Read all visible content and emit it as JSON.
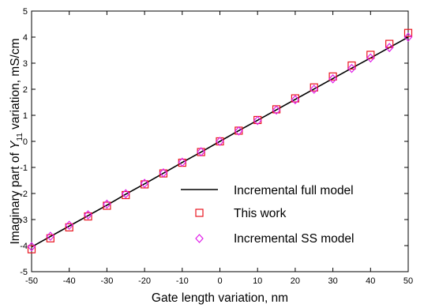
{
  "chart_data": {
    "type": "line",
    "title": "",
    "xlabel": "Gate length variation, nm",
    "ylabel": {
      "prefix": "Imaginary part of ",
      "symbol": "Y",
      "subscript": "11",
      "suffix": " variation, mS/cm"
    },
    "xlim": [
      -50,
      50
    ],
    "ylim": [
      -5,
      5
    ],
    "xticks": [
      -50,
      -40,
      -30,
      -20,
      -10,
      0,
      10,
      20,
      30,
      40,
      50
    ],
    "yticks": [
      -5,
      -4,
      -3,
      -2,
      -1,
      0,
      1,
      2,
      3,
      4,
      5
    ],
    "grid": false,
    "legend_position": "bottom-right",
    "x": [
      -50,
      -45,
      -40,
      -35,
      -30,
      -25,
      -20,
      -15,
      -10,
      -5,
      0,
      5,
      10,
      15,
      20,
      25,
      30,
      35,
      40,
      45,
      50
    ],
    "series": [
      {
        "name": "Incremental full model",
        "style": "line",
        "color": "#000000",
        "values": [
          -4.05,
          -3.65,
          -3.25,
          -2.85,
          -2.45,
          -2.03,
          -1.63,
          -1.22,
          -0.81,
          -0.41,
          0.0,
          0.41,
          0.81,
          1.21,
          1.61,
          2.01,
          2.41,
          2.81,
          3.2,
          3.6,
          4.0
        ]
      },
      {
        "name": "This work",
        "style": "square",
        "color": "#e8141e",
        "values": [
          -4.14,
          -3.72,
          -3.3,
          -2.88,
          -2.47,
          -2.06,
          -1.65,
          -1.23,
          -0.82,
          -0.41,
          0.0,
          0.41,
          0.82,
          1.23,
          1.65,
          2.07,
          2.49,
          2.91,
          3.32,
          3.74,
          4.16
        ]
      },
      {
        "name": "Incremental SS model",
        "style": "diamond",
        "color": "#e020e8",
        "values": [
          -4.04,
          -3.64,
          -3.22,
          -2.82,
          -2.41,
          -2.01,
          -1.61,
          -1.21,
          -0.8,
          -0.4,
          0.0,
          0.4,
          0.8,
          1.2,
          1.6,
          2.0,
          2.4,
          2.8,
          3.2,
          3.6,
          4.0
        ]
      }
    ]
  }
}
